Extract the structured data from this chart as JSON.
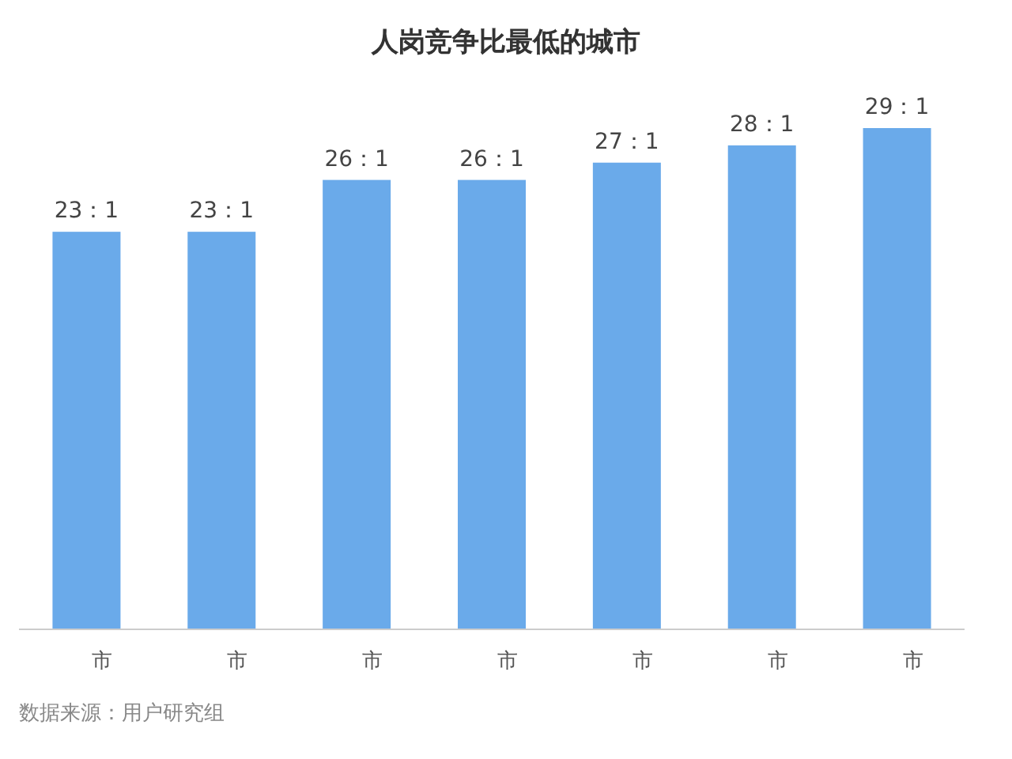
{
  "chart_data": {
    "type": "bar",
    "title": "人岗竞争比最低的城市",
    "categories": [
      "市",
      "市",
      "市",
      "市",
      "市",
      "市",
      "市"
    ],
    "values": [
      23,
      23,
      26,
      26,
      27,
      28,
      29
    ],
    "value_labels": [
      "23：1",
      "23：1",
      "26：1",
      "26：1",
      "27：1",
      "28：1",
      "29：1"
    ],
    "color": "#6aaaea",
    "annotations": [
      "数据来源：用户研究组"
    ]
  }
}
